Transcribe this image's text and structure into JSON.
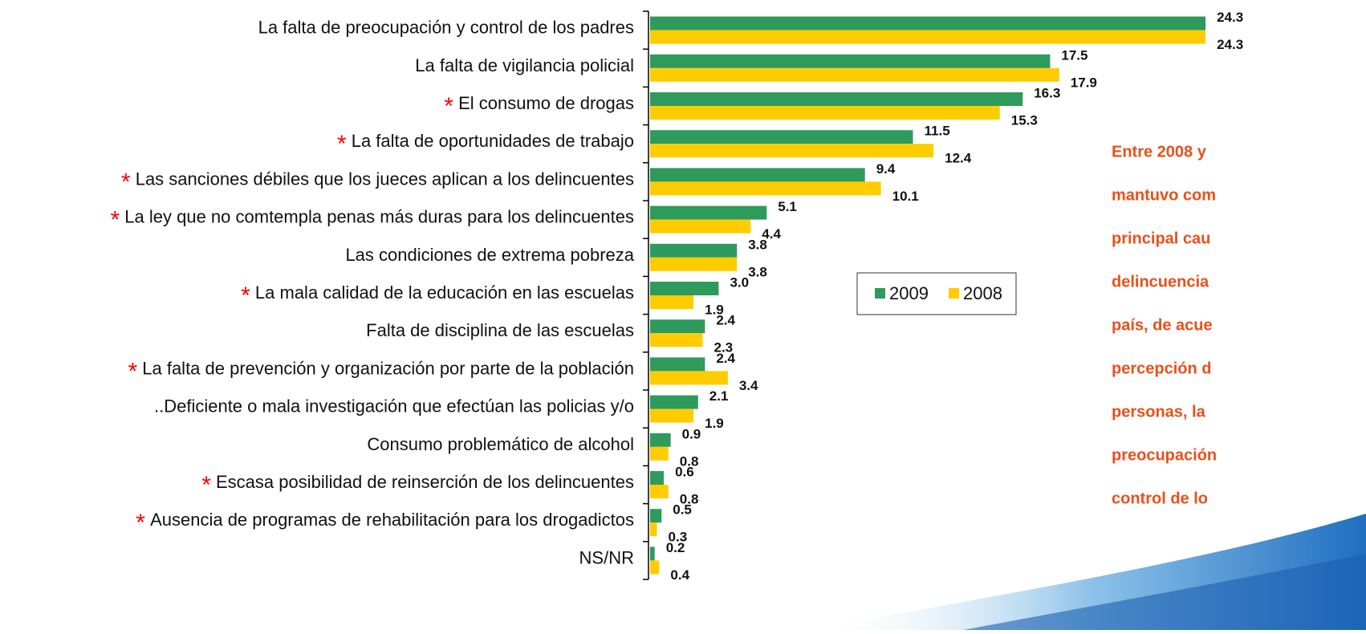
{
  "chart_data": {
    "type": "barh",
    "categories": [
      "La falta de preocupación y control de los padres",
      "La falta de vigilancia policial",
      "El consumo de drogas",
      "La falta de oportunidades de trabajo",
      "Las sanciones débiles que los jueces aplican a los delincuentes",
      "La ley que no comtempla penas más duras para los delincuentes",
      "Las condiciones de extrema pobreza",
      "La mala calidad de la educación en las escuelas",
      "Falta de disciplina de las escuelas",
      "La falta de prevención y organización por parte de la población",
      "..Deficiente o mala investigación que efectúan las policias y/o",
      "Consumo problemático de alcohol",
      "Escasa posibilidad de reinserción de los delincuentes",
      "Ausencia de programas de rehabilitación para los drogadictos",
      "NS/NR"
    ],
    "marker": "*",
    "marked": [
      false,
      false,
      true,
      true,
      true,
      true,
      false,
      true,
      false,
      true,
      false,
      false,
      true,
      true,
      false
    ],
    "marker_color": "#ff0000",
    "series": [
      {
        "name": "2009",
        "color": "#2e9a5c",
        "values": [
          24.3,
          17.5,
          16.3,
          11.5,
          9.4,
          5.1,
          3.8,
          3.0,
          2.4,
          2.4,
          2.1,
          0.9,
          0.6,
          0.5,
          0.2
        ],
        "value_labels": [
          "24.3",
          "17.5",
          "16.3",
          "11.5",
          "9.4",
          "5.1",
          "3.8",
          "3.0",
          "2.4",
          "2.4",
          "2.1",
          "0.9",
          "0.6",
          "0.5",
          "0.2"
        ]
      },
      {
        "name": "2008",
        "color": "#ffcc00",
        "values": [
          24.3,
          17.9,
          15.3,
          12.4,
          10.1,
          4.4,
          3.8,
          1.9,
          2.3,
          3.4,
          1.9,
          0.8,
          0.8,
          0.3,
          0.4
        ],
        "value_labels": [
          "24.3",
          "17.9",
          "15.3",
          "12.4",
          "10.1",
          "4.4",
          "3.8",
          "1.9",
          "2.3",
          "3.4",
          "1.9",
          "0.8",
          "0.8",
          "0.3",
          "0.4"
        ]
      }
    ],
    "xlim": [
      0,
      25
    ],
    "legend": "center",
    "annotation": [
      "Entre 2008 y",
      "mantuvo com",
      "principal cau",
      "delincuencia",
      "país, de acue",
      "percepción d",
      "personas, la",
      "preocupación",
      "control de lo"
    ],
    "annotation_color": "#e8501a"
  }
}
